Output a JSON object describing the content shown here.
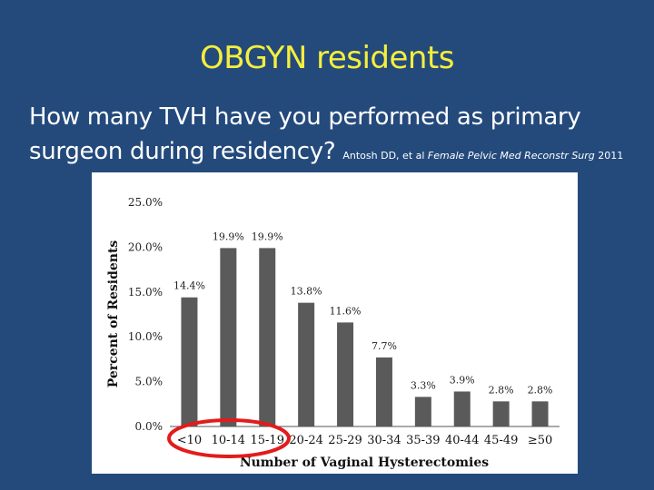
{
  "slide": {
    "title": "OBGYN residents",
    "question": "How many TVH have you performed as primary surgeon during residency?",
    "citation_authors": "Antosh DD, et al",
    "citation_journal": "Female Pelvic Med Reconstr Surg",
    "citation_year": "2011"
  },
  "colors": {
    "background": "#244a7c",
    "title": "#f5ef3b",
    "bar": "#5a5a5a",
    "highlight_ellipse": "#e31b1b"
  },
  "chart_data": {
    "type": "bar",
    "title": "",
    "xlabel": "Number of Vaginal Hysterectomies",
    "ylabel": "Percent of Residents",
    "categories": [
      "<10",
      "10-14",
      "15-19",
      "20-24",
      "25-29",
      "30-34",
      "35-39",
      "40-44",
      "45-49",
      "≥50"
    ],
    "values": [
      14.4,
      19.9,
      19.9,
      13.8,
      11.6,
      7.7,
      3.3,
      3.9,
      2.8,
      2.8
    ],
    "data_labels": [
      "14.4%",
      "19.9%",
      "19.9%",
      "13.8%",
      "11.6%",
      "7.7%",
      "3.3%",
      "3.9%",
      "2.8%",
      "2.8%"
    ],
    "yticks": [
      0,
      5,
      10,
      15,
      20,
      25
    ],
    "ytick_labels": [
      "0.0%",
      "5.0%",
      "10.0%",
      "15.0%",
      "20.0%",
      "25.0%"
    ],
    "ylim": [
      0,
      25
    ],
    "grid": false,
    "legend": "none",
    "annotation": "red ellipse circling the first three categories (<10, 10-14, 15-19)"
  }
}
